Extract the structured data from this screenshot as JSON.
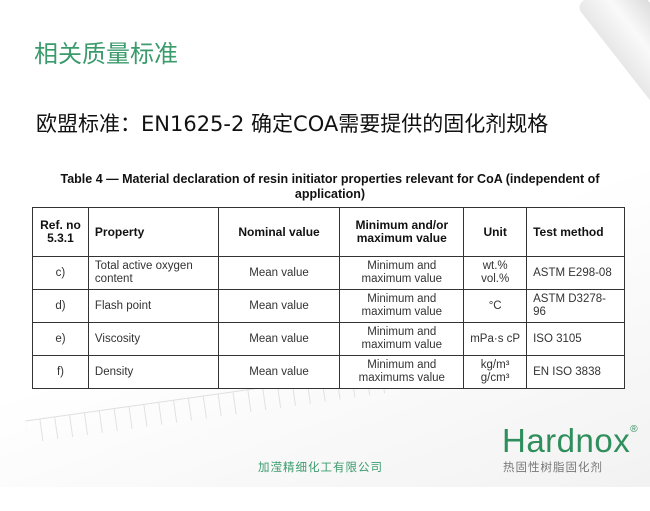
{
  "title": "相关质量标准",
  "subtitle": "欧盟标准：EN1625-2 确定COA需要提供的固化剂规格",
  "table": {
    "caption": "Table 4 — Material declaration of resin initiator properties relevant for CoA (independent of application)",
    "headers": [
      "Ref. no 5.3.1",
      "Property",
      "Nominal value",
      "Minimum and/or maximum value",
      "Unit",
      "Test method"
    ],
    "rows": [
      [
        "c)",
        "Total active oxygen content",
        "Mean value",
        "Minimum and maximum value",
        "wt.% vol.%",
        "ASTM E298-08"
      ],
      [
        "d)",
        "Flash point",
        "Mean value",
        "Minimum and maximum value",
        "°C",
        "ASTM D3278-96"
      ],
      [
        "e)",
        "Viscosity",
        "Mean value",
        "Minimum and maximum value",
        "mPa·s cP",
        "ISO 3105"
      ],
      [
        "f)",
        "Density",
        "Mean value",
        "Minimum and maximums value",
        "kg/m³ g/cm³",
        "EN ISO 3838"
      ]
    ]
  },
  "footer": {
    "company": "加滢精细化工有限公司",
    "brand": "Hardnox",
    "registered": "®",
    "tagline": "热固性树脂固化剂"
  },
  "colors": {
    "accent": "#3b9b6c"
  }
}
